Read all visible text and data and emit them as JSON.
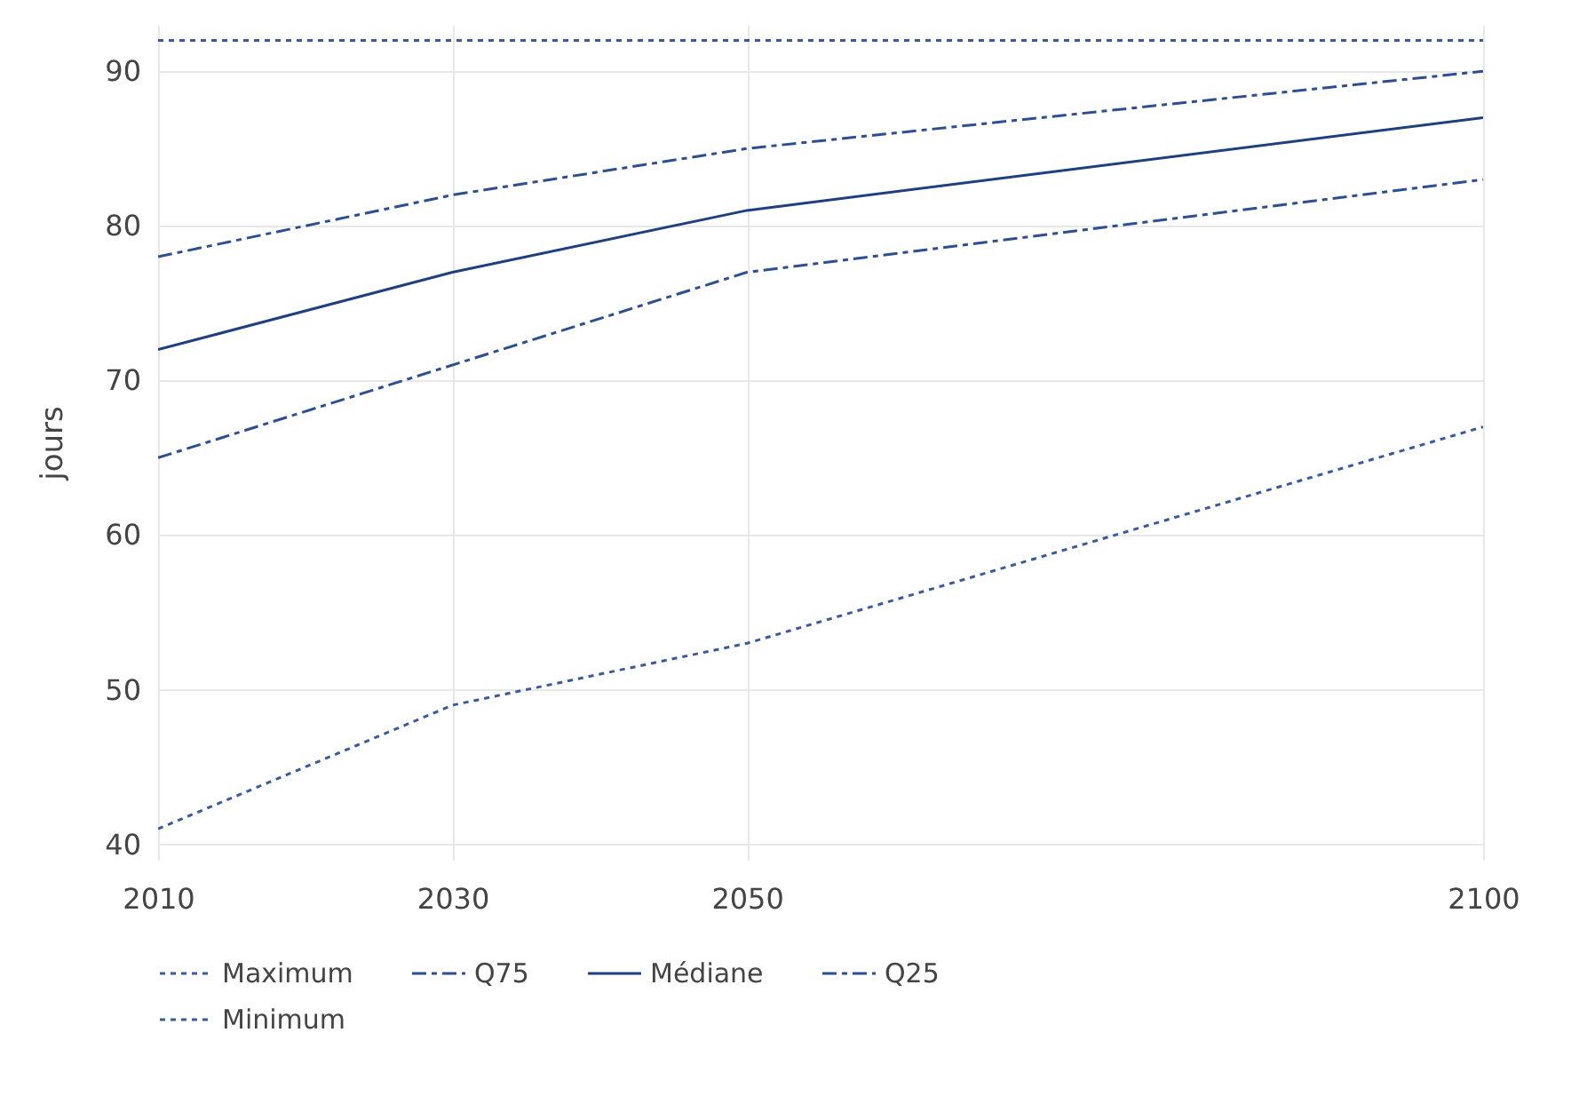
{
  "chart_data": {
    "type": "line",
    "ylabel": "jours",
    "x": [
      2010,
      2030,
      2050,
      2100
    ],
    "xlim": [
      2010,
      2100
    ],
    "xticks": [
      2010,
      2030,
      2050,
      2100
    ],
    "ylim": [
      39,
      93
    ],
    "yticks": [
      40,
      50,
      60,
      70,
      80,
      90
    ],
    "grid": true,
    "legend": "bottom",
    "marker": "none",
    "series": [
      {
        "name": "Maximum",
        "color": "#3a5a9a",
        "line_style": "dotted",
        "values": [
          92,
          92,
          92,
          92
        ]
      },
      {
        "name": "Q75",
        "color": "#2e4f8f",
        "line_style": "dashdot",
        "values": [
          78,
          82,
          85,
          90
        ]
      },
      {
        "name": "Médiane",
        "color": "#1f3f7f",
        "line_style": "solid",
        "values": [
          72,
          77,
          81,
          87
        ]
      },
      {
        "name": "Q25",
        "color": "#2e4f8f",
        "line_style": "dashdot",
        "values": [
          65,
          71,
          77,
          83
        ]
      },
      {
        "name": "Minimum",
        "color": "#3a5a9a",
        "line_style": "dotted",
        "values": [
          41,
          49,
          53,
          67
        ]
      }
    ]
  }
}
